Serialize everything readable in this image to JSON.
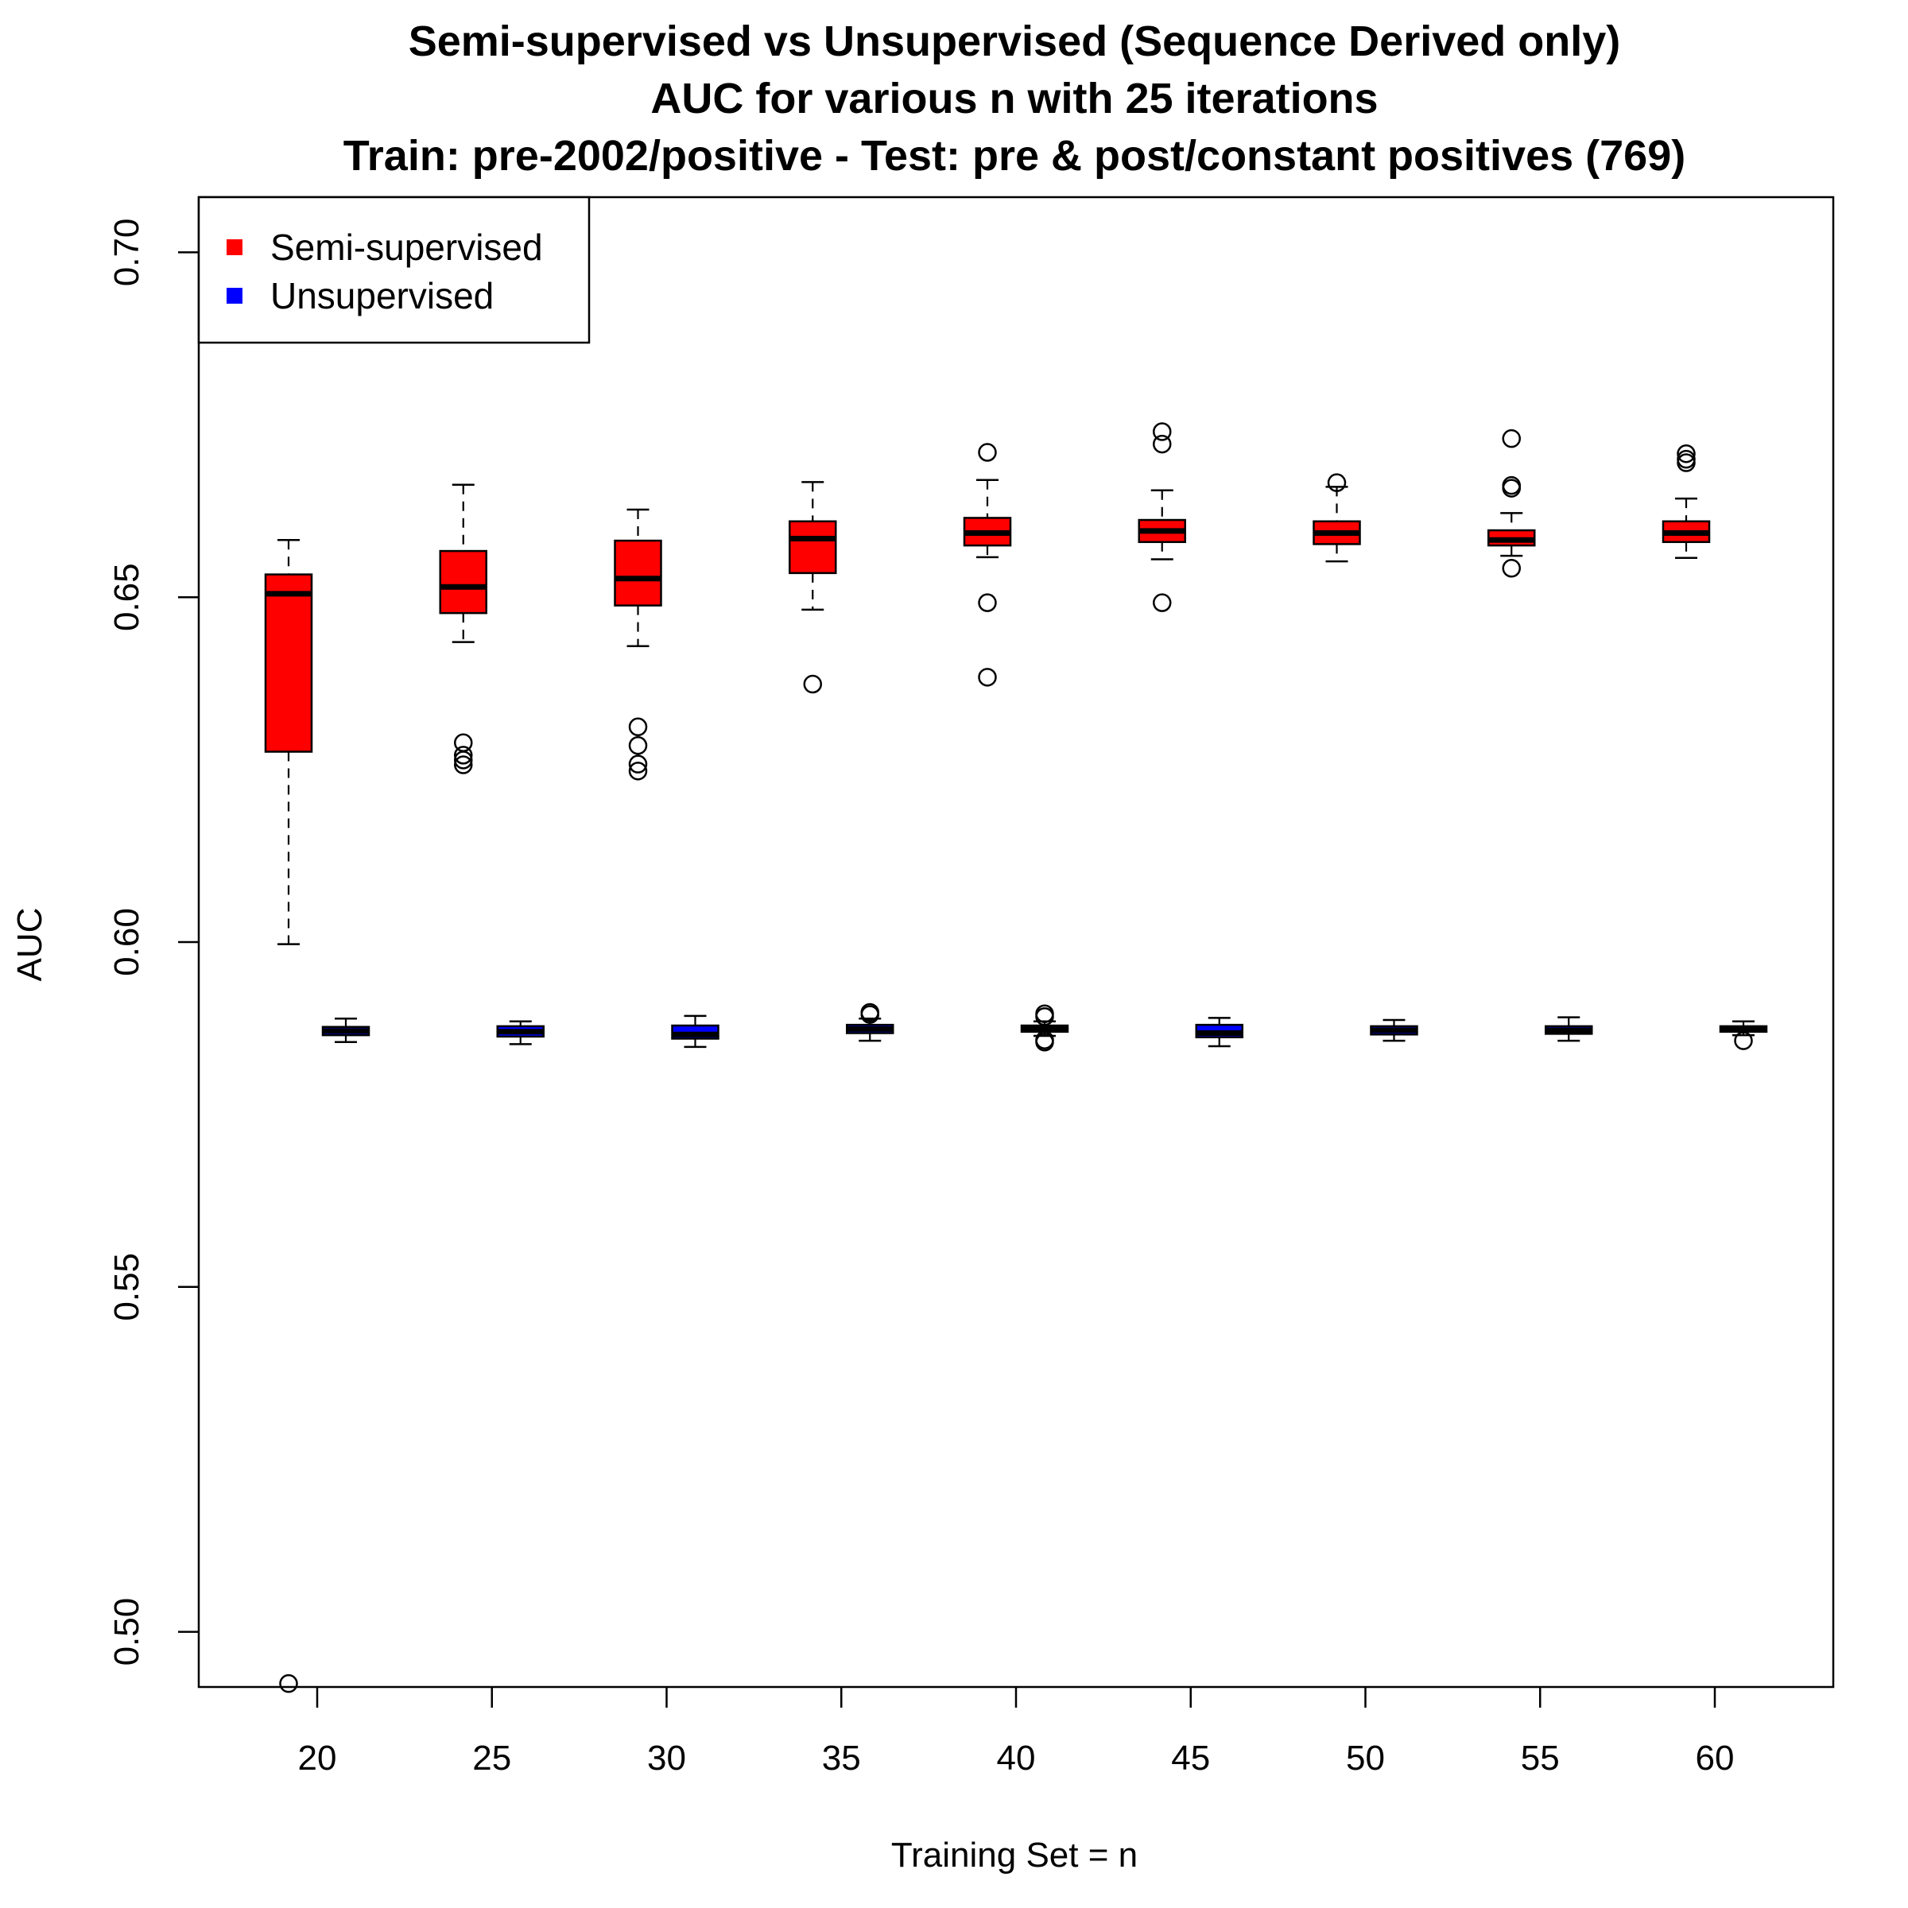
{
  "chart_data": {
    "type": "boxplot",
    "title_lines": [
      "Semi-supervised vs Unsupervised (Sequence Derived only)",
      "AUC for various n with 25 iterations",
      "Train: pre-2002/positive - Test: pre & post/constant positives (769)"
    ],
    "xlabel": "Training Set = n",
    "ylabel": "AUC",
    "categories": [
      "20",
      "25",
      "30",
      "35",
      "40",
      "45",
      "50",
      "55",
      "60"
    ],
    "yticks": [
      "0.50",
      "0.55",
      "0.60",
      "0.65",
      "0.70"
    ],
    "ylim": [
      0.492,
      0.708
    ],
    "legend_position": "top-left",
    "legend": [
      {
        "label": "Semi-supervised",
        "color": "#ff0000"
      },
      {
        "label": "Unsupervised",
        "color": "#0000ff"
      }
    ],
    "series": [
      {
        "name": "Semi-supervised",
        "color": "#ff0000",
        "boxes": [
          {
            "min": 0.5997,
            "q1": 0.6276,
            "median": 0.6505,
            "q3": 0.6533,
            "max": 0.6583,
            "outliers": [
              0.4925
            ]
          },
          {
            "min": 0.6435,
            "q1": 0.6477,
            "median": 0.6515,
            "q3": 0.6567,
            "max": 0.6663,
            "outliers": [
              0.6289,
              0.6271,
              0.6264,
              0.6257
            ]
          },
          {
            "min": 0.6429,
            "q1": 0.6488,
            "median": 0.6527,
            "q3": 0.6582,
            "max": 0.6627,
            "outliers": [
              0.6312,
              0.6285,
              0.6258,
              0.6248
            ]
          },
          {
            "min": 0.6482,
            "q1": 0.6535,
            "median": 0.6585,
            "q3": 0.661,
            "max": 0.6667,
            "outliers": [
              0.6374
            ]
          },
          {
            "min": 0.6558,
            "q1": 0.6575,
            "median": 0.6593,
            "q3": 0.6615,
            "max": 0.667,
            "outliers": [
              0.671,
              0.6492,
              0.6384
            ]
          },
          {
            "min": 0.6555,
            "q1": 0.658,
            "median": 0.6596,
            "q3": 0.6612,
            "max": 0.6655,
            "outliers": [
              0.674,
              0.6722,
              0.6492
            ]
          },
          {
            "min": 0.6552,
            "q1": 0.6577,
            "median": 0.6593,
            "q3": 0.661,
            "max": 0.666,
            "outliers": [
              0.6666
            ]
          },
          {
            "min": 0.656,
            "q1": 0.6575,
            "median": 0.6583,
            "q3": 0.6597,
            "max": 0.6622,
            "outliers": [
              0.673,
              0.6662,
              0.6658,
              0.6542
            ]
          },
          {
            "min": 0.6557,
            "q1": 0.658,
            "median": 0.6593,
            "q3": 0.661,
            "max": 0.6643,
            "outliers": [
              0.6708,
              0.67,
              0.6695
            ]
          }
        ]
      },
      {
        "name": "Unsupervised",
        "color": "#0000ff",
        "boxes": [
          {
            "min": 0.5855,
            "q1": 0.5865,
            "median": 0.5871,
            "q3": 0.5877,
            "max": 0.5889,
            "outliers": []
          },
          {
            "min": 0.5852,
            "q1": 0.5863,
            "median": 0.587,
            "q3": 0.5878,
            "max": 0.5885,
            "outliers": []
          },
          {
            "min": 0.5848,
            "q1": 0.586,
            "median": 0.5866,
            "q3": 0.5879,
            "max": 0.5893,
            "outliers": []
          },
          {
            "min": 0.5857,
            "q1": 0.5868,
            "median": 0.5874,
            "q3": 0.588,
            "max": 0.5889,
            "outliers": [
              0.5898,
              0.5895
            ]
          },
          {
            "min": 0.5864,
            "q1": 0.587,
            "median": 0.5875,
            "q3": 0.5879,
            "max": 0.5885,
            "outliers": [
              0.5896,
              0.5892,
              0.5858,
              0.5855
            ]
          },
          {
            "min": 0.5849,
            "q1": 0.5862,
            "median": 0.5868,
            "q3": 0.588,
            "max": 0.589,
            "outliers": []
          },
          {
            "min": 0.5857,
            "q1": 0.5866,
            "median": 0.5872,
            "q3": 0.5878,
            "max": 0.5887,
            "outliers": []
          },
          {
            "min": 0.5857,
            "q1": 0.5867,
            "median": 0.5872,
            "q3": 0.5878,
            "max": 0.5891,
            "outliers": []
          },
          {
            "min": 0.5865,
            "q1": 0.587,
            "median": 0.5874,
            "q3": 0.5878,
            "max": 0.5885,
            "outliers": [
              0.5857
            ]
          }
        ]
      }
    ]
  }
}
